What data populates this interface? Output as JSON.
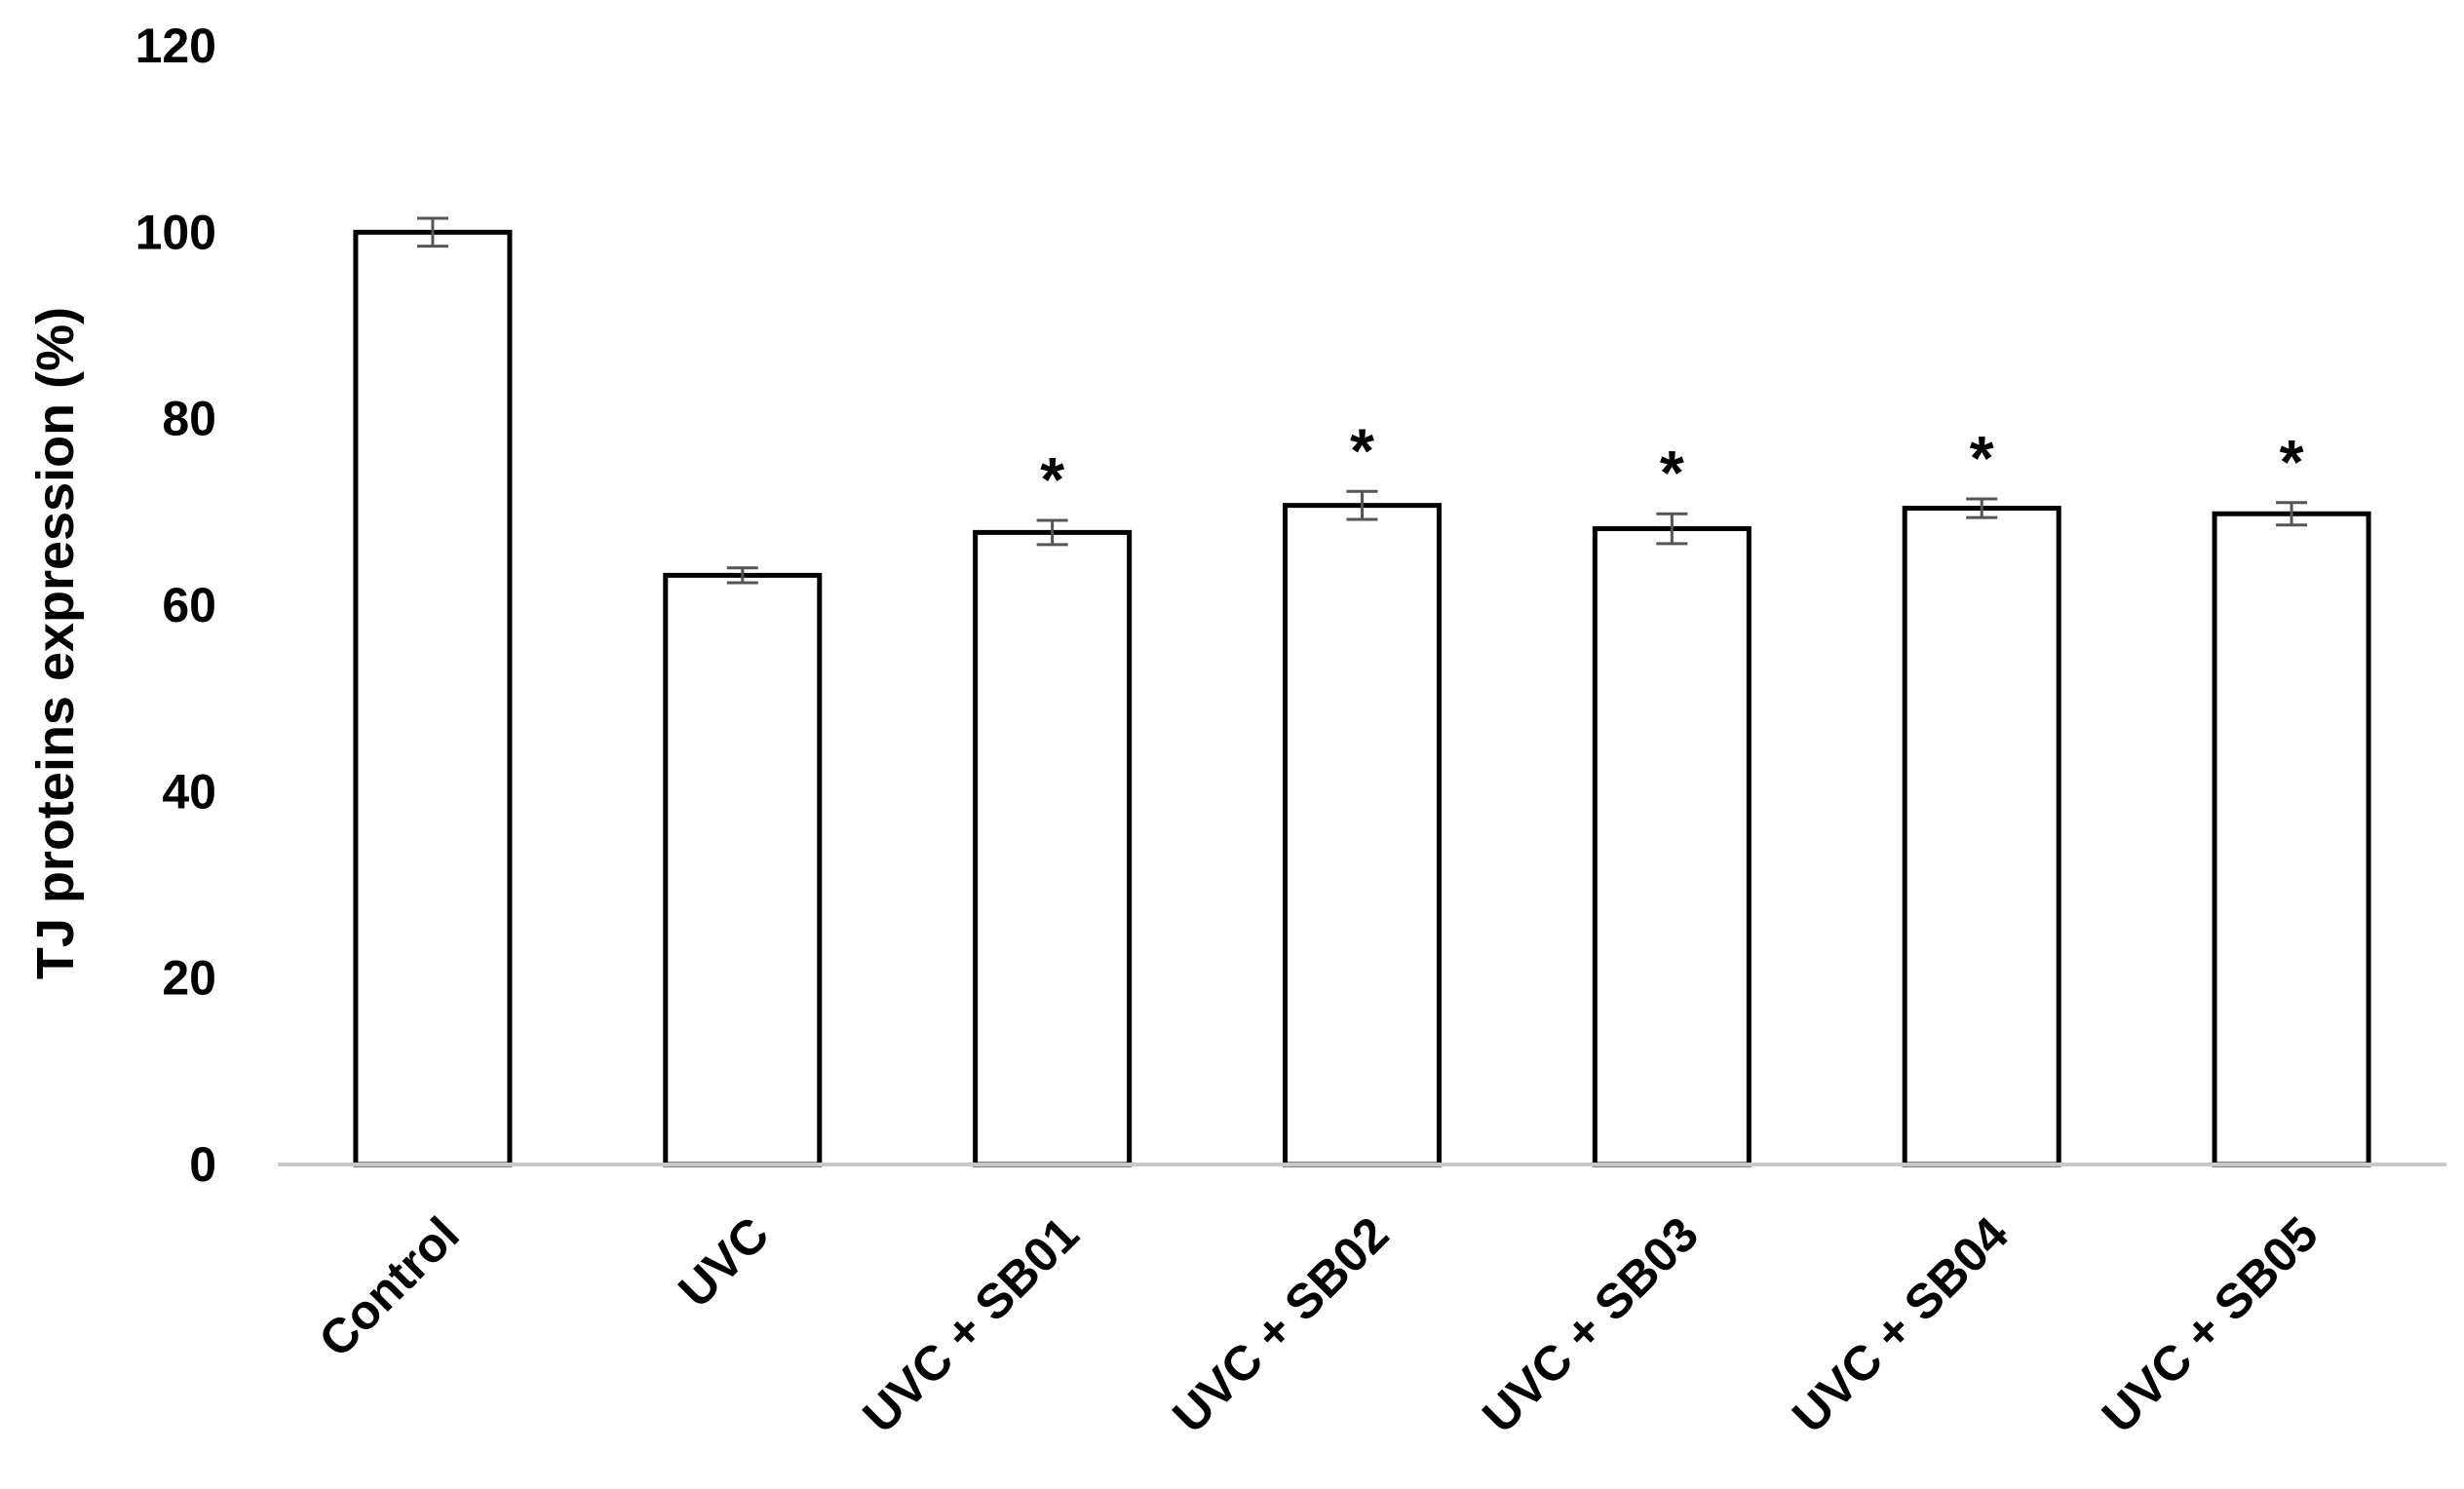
{
  "chart_data": {
    "type": "bar",
    "title": "",
    "xlabel": "",
    "ylabel": "TJ proteins expression (%)",
    "ylim": [
      0,
      120
    ],
    "yticks": [
      0,
      20,
      40,
      60,
      80,
      100,
      120
    ],
    "categories": [
      "Control",
      "UVC",
      "UVC + SB01",
      "UVC + SB02",
      "UVC + SB03",
      "UVC + SB04",
      "UVC + SB05"
    ],
    "values": [
      100,
      63.2,
      67.8,
      70.7,
      68.2,
      70.4,
      69.8
    ],
    "errors": [
      1.5,
      0.8,
      1.3,
      1.5,
      1.6,
      1.0,
      1.2
    ],
    "significance": [
      "",
      "",
      "*",
      "*",
      "*",
      "*",
      "*"
    ],
    "grid": false,
    "legend": "none",
    "colors": {
      "bar_fill": "#ffffff",
      "bar_stroke": "#000000",
      "error_bar": "#555555",
      "axis": "#c8c8c8"
    }
  }
}
